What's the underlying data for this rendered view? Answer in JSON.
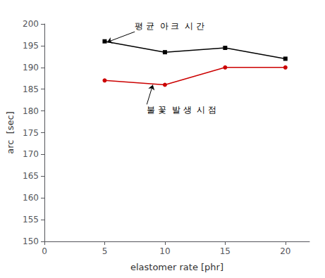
{
  "chart_data": {
    "type": "line",
    "x": [
      5,
      10,
      15,
      20
    ],
    "series": [
      {
        "color": "#000000",
        "marker": "square",
        "values": [
          196,
          193.5,
          194.5,
          192
        ]
      },
      {
        "color": "#cc0000",
        "marker": "circle",
        "values": [
          187,
          186,
          190,
          190
        ]
      }
    ],
    "xlabel": "elastomer rate [phr]",
    "ylabel": "arc  [sec]",
    "xlim": [
      0,
      22
    ],
    "xticks": [
      0,
      5,
      10,
      15,
      20
    ],
    "ylim": [
      150,
      200
    ],
    "yticks": [
      150,
      155,
      160,
      165,
      170,
      175,
      180,
      185,
      190,
      195,
      200
    ],
    "grid": false,
    "annotations": [
      {
        "text": "평 균  아 크  시 간",
        "xy": [
          5.2,
          195.8
        ],
        "xytext": [
          7.5,
          198.2
        ],
        "color": "#000000"
      },
      {
        "text": "불 꽃  발 생  시 점",
        "xy": [
          9.0,
          186.0
        ],
        "xytext": [
          8.5,
          181.5
        ],
        "color": "#000000"
      }
    ]
  }
}
